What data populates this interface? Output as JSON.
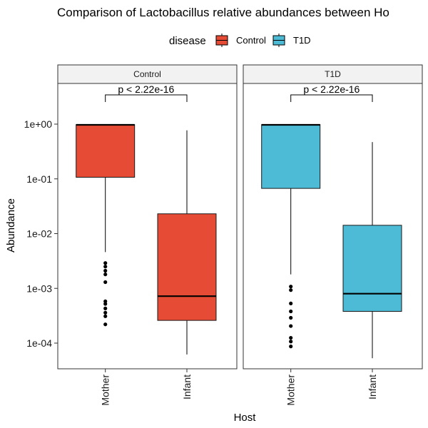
{
  "chart_data": {
    "type": "boxplot",
    "title": "Comparison of Lactobacillus relative abundances between Ho",
    "xlabel": "Host",
    "ylabel": "Abundance",
    "y_scale": "log10",
    "ylim": [
      3e-05,
      6
    ],
    "y_ticks": [
      {
        "value": 1,
        "label": "1e+00"
      },
      {
        "value": 0.1,
        "label": "1e-01"
      },
      {
        "value": 0.01,
        "label": "1e-02"
      },
      {
        "value": 0.001,
        "label": "1e-03"
      },
      {
        "value": 0.0001,
        "label": "1e-04"
      }
    ],
    "categories": [
      "Mother",
      "Infant"
    ],
    "legend": {
      "title": "disease",
      "position": "top",
      "entries": [
        {
          "label": "Control",
          "color": "#E64B35"
        },
        {
          "label": "T1D",
          "color": "#4DBBD5"
        }
      ]
    },
    "grid": false,
    "panels": [
      {
        "strip": "Control",
        "fill": "#E64B35",
        "pvalue": "p < 2.22e-16",
        "boxes": [
          {
            "category": "Mother",
            "lower_whisker": 0.0046,
            "q1": 0.107,
            "median": 0.97,
            "q3": 0.98,
            "upper_whisker": 1.0,
            "outliers": [
              0.0029,
              0.0025,
              0.0021,
              0.0018,
              0.0013,
              0.00058,
              0.00052,
              0.00043,
              0.00036,
              0.00031,
              0.00022
            ]
          },
          {
            "category": "Infant",
            "lower_whisker": 6.2e-05,
            "q1": 0.00026,
            "median": 0.00072,
            "q3": 0.023,
            "upper_whisker": 0.77,
            "outliers": []
          }
        ]
      },
      {
        "strip": "T1D",
        "fill": "#4DBBD5",
        "pvalue": "p < 2.22e-16",
        "boxes": [
          {
            "category": "Mother",
            "lower_whisker": 0.0018,
            "q1": 0.067,
            "median": 0.97,
            "q3": 0.98,
            "upper_whisker": 1.0,
            "outliers": [
              0.00108,
              0.00093,
              0.00053,
              0.00038,
              0.00029,
              0.000205,
              0.000125,
              0.000107,
              8.7e-05
            ]
          },
          {
            "category": "Infant",
            "lower_whisker": 5.3e-05,
            "q1": 0.00038,
            "median": 0.0008,
            "q3": 0.0142,
            "upper_whisker": 0.47,
            "outliers": []
          }
        ]
      }
    ]
  }
}
